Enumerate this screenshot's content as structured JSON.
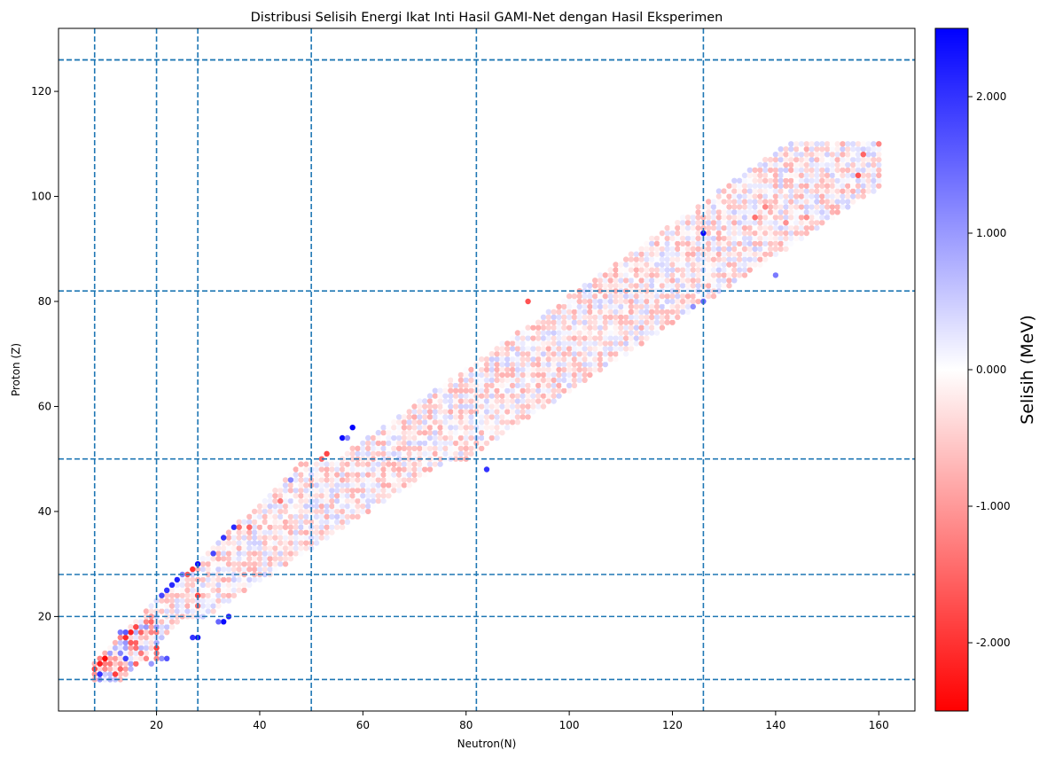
{
  "chart_data": {
    "type": "scatter",
    "title": "Distribusi Selisih Energi Ikat Inti Hasil GAMI-Net dengan Hasil Eksperimen",
    "xlabel": "Neutron(N)",
    "ylabel": "Proton (Z)",
    "xlim": [
      1,
      167
    ],
    "ylim": [
      2,
      132
    ],
    "xticks": [
      "20",
      "40",
      "60",
      "80",
      "100",
      "120",
      "140",
      "160"
    ],
    "yticks": [
      "20",
      "40",
      "60",
      "80",
      "100",
      "120"
    ],
    "magic_numbers": [
      8,
      20,
      28,
      50,
      82,
      126
    ],
    "grid": false,
    "colorbar": {
      "label": "Selisih (MeV)",
      "range": [
        -2.5,
        2.5
      ],
      "ticks": [
        "-2.000",
        "-1.000",
        "0.000",
        "1.000",
        "2.000"
      ],
      "colormap": "bwr_reversed",
      "low_color": "#ff0000",
      "mid_color": "#ffffff",
      "high_color": "#0000ff"
    },
    "marker_color_range_note": "",
    "points": [
      {
        "n": 10,
        "z": 12,
        "v": -2.4
      },
      {
        "n": 9,
        "z": 11,
        "v": -2.2
      },
      {
        "n": 8,
        "z": 10,
        "v": -1.8
      },
      {
        "n": 9,
        "z": 9,
        "v": 2.0
      },
      {
        "n": 12,
        "z": 9,
        "v": -1.9
      },
      {
        "n": 13,
        "z": 10,
        "v": -1.5
      },
      {
        "n": 14,
        "z": 12,
        "v": 1.9
      },
      {
        "n": 13,
        "z": 13,
        "v": 1.2
      },
      {
        "n": 14,
        "z": 16,
        "v": -2.1
      },
      {
        "n": 15,
        "z": 17,
        "v": -2.2
      },
      {
        "n": 16,
        "z": 18,
        "v": -1.8
      },
      {
        "n": 15,
        "z": 15,
        "v": -1.6
      },
      {
        "n": 16,
        "z": 14,
        "v": -1.4
      },
      {
        "n": 17,
        "z": 13,
        "v": -1.3
      },
      {
        "n": 18,
        "z": 12,
        "v": -1.2
      },
      {
        "n": 14,
        "z": 17,
        "v": 1.6
      },
      {
        "n": 13,
        "z": 17,
        "v": 1.3
      },
      {
        "n": 19,
        "z": 11,
        "v": 1.0
      },
      {
        "n": 20,
        "z": 12,
        "v": -1.2
      },
      {
        "n": 21,
        "z": 12,
        "v": 1.1
      },
      {
        "n": 22,
        "z": 12,
        "v": 1.7
      },
      {
        "n": 20,
        "z": 14,
        "v": -1.9
      },
      {
        "n": 20,
        "z": 13,
        "v": -1.3
      },
      {
        "n": 19,
        "z": 20,
        "v": -1.0
      },
      {
        "n": 21,
        "z": 24,
        "v": 1.8
      },
      {
        "n": 22,
        "z": 25,
        "v": 2.0
      },
      {
        "n": 23,
        "z": 26,
        "v": 2.1
      },
      {
        "n": 24,
        "z": 27,
        "v": 2.2
      },
      {
        "n": 25,
        "z": 28,
        "v": 1.2
      },
      {
        "n": 26,
        "z": 28,
        "v": -1.6
      },
      {
        "n": 27,
        "z": 29,
        "v": -2.0
      },
      {
        "n": 28,
        "z": 30,
        "v": 2.4
      },
      {
        "n": 28,
        "z": 16,
        "v": 2.4
      },
      {
        "n": 27,
        "z": 16,
        "v": 2.0
      },
      {
        "n": 28,
        "z": 24,
        "v": -1.8
      },
      {
        "n": 28,
        "z": 22,
        "v": -1.4
      },
      {
        "n": 33,
        "z": 19,
        "v": 2.4
      },
      {
        "n": 34,
        "z": 20,
        "v": 2.2
      },
      {
        "n": 32,
        "z": 19,
        "v": 1.5
      },
      {
        "n": 31,
        "z": 32,
        "v": 1.8
      },
      {
        "n": 33,
        "z": 35,
        "v": 2.0
      },
      {
        "n": 35,
        "z": 37,
        "v": 2.1
      },
      {
        "n": 36,
        "z": 37,
        "v": -1.4
      },
      {
        "n": 38,
        "z": 37,
        "v": -1.5
      },
      {
        "n": 44,
        "z": 42,
        "v": -1.3
      },
      {
        "n": 46,
        "z": 46,
        "v": 1.2
      },
      {
        "n": 52,
        "z": 50,
        "v": -1.5
      },
      {
        "n": 53,
        "z": 51,
        "v": -1.8
      },
      {
        "n": 56,
        "z": 54,
        "v": 2.4
      },
      {
        "n": 58,
        "z": 56,
        "v": 2.6
      },
      {
        "n": 57,
        "z": 54,
        "v": 1.2
      },
      {
        "n": 84,
        "z": 48,
        "v": 2.0
      },
      {
        "n": 126,
        "z": 93,
        "v": 2.4
      },
      {
        "n": 92,
        "z": 80,
        "v": -1.7
      },
      {
        "n": 156,
        "z": 104,
        "v": -1.7
      },
      {
        "n": 160,
        "z": 110,
        "v": -1.2
      },
      {
        "n": 157,
        "z": 108,
        "v": -1.5
      },
      {
        "n": 146,
        "z": 96,
        "v": -1.1
      },
      {
        "n": 142,
        "z": 95,
        "v": -1.1
      },
      {
        "n": 136,
        "z": 96,
        "v": -1.4
      },
      {
        "n": 138,
        "z": 98,
        "v": -1.2
      },
      {
        "n": 140,
        "z": 85,
        "v": 1.3
      },
      {
        "n": 126,
        "z": 80,
        "v": 1.5
      },
      {
        "n": 124,
        "z": 79,
        "v": 1.1
      }
    ]
  }
}
